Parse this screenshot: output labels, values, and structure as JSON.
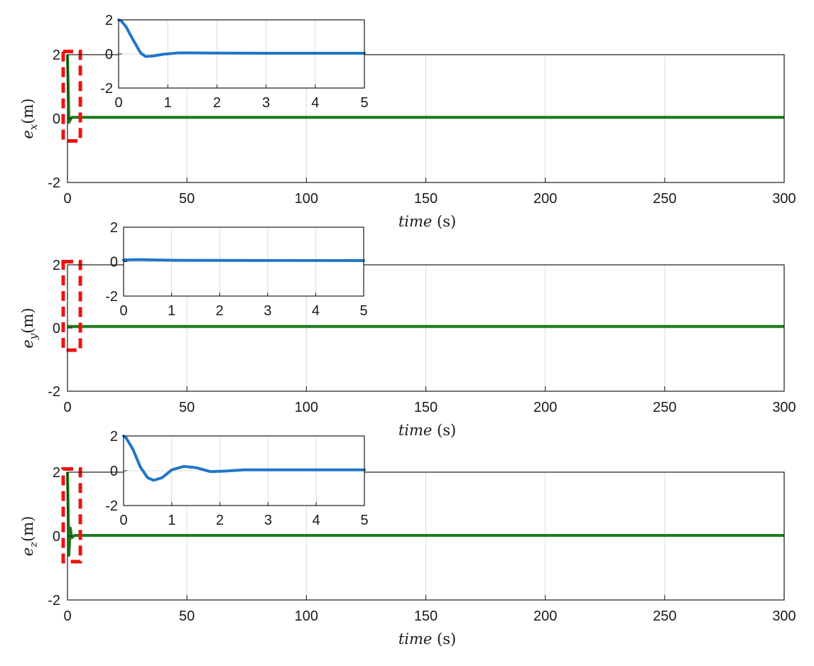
{
  "colors": {
    "main_line": "#1a7a1a",
    "inset_line": "#1f77c8",
    "highlight_box": "#ee1111",
    "grid": "#dcdcdc",
    "axes": "#1a1a1a"
  },
  "chart_data": [
    {
      "type": "line",
      "xlabel": {
        "var": "time",
        "unit": "(s)"
      },
      "ylabel": {
        "sym": "e",
        "sub": "x",
        "unit": "(m)"
      },
      "xlim": [
        0,
        300
      ],
      "ylim": [
        -2,
        2
      ],
      "xticks": [
        0,
        50,
        100,
        150,
        200,
        250,
        300
      ],
      "yticks": [
        -2,
        0,
        2
      ],
      "grid": true,
      "series": [
        {
          "x": [
            0,
            0.3,
            0.6,
            1.0,
            1.5,
            2,
            5,
            300
          ],
          "y": [
            2,
            1.0,
            -0.12,
            -0.06,
            0.02,
            0.04,
            0.04,
            0.04
          ]
        }
      ],
      "highlight_box": {
        "x": [
          0,
          3
        ],
        "y": [
          -0.7,
          2.1
        ]
      },
      "inset": {
        "xlim": [
          0,
          5
        ],
        "ylim": [
          -2,
          2
        ],
        "xticks": [
          0,
          1,
          2,
          3,
          4,
          5
        ],
        "yticks": [
          -2,
          0,
          2
        ],
        "series": [
          {
            "x": [
              0,
              0.05,
              0.15,
              0.3,
              0.45,
              0.55,
              0.7,
              0.9,
              1.2,
              1.5,
              2,
              3,
              5
            ],
            "y": [
              2,
              1.95,
              1.6,
              0.8,
              0.05,
              -0.15,
              -0.12,
              -0.02,
              0.06,
              0.06,
              0.05,
              0.04,
              0.04
            ]
          }
        ]
      }
    },
    {
      "type": "line",
      "xlabel": {
        "var": "time",
        "unit": "(s)"
      },
      "ylabel": {
        "sym": "e",
        "sub": "y",
        "unit": "(m)"
      },
      "xlim": [
        0,
        300
      ],
      "ylim": [
        -2,
        2
      ],
      "xticks": [
        0,
        50,
        100,
        150,
        200,
        250,
        300
      ],
      "yticks": [
        -2,
        0,
        2
      ],
      "grid": true,
      "series": [
        {
          "x": [
            0,
            300
          ],
          "y": [
            0.05,
            0.05
          ]
        }
      ],
      "highlight_box": {
        "x": [
          0,
          3
        ],
        "y": [
          -0.7,
          2.1
        ]
      },
      "inset": {
        "xlim": [
          0,
          5
        ],
        "ylim": [
          -2,
          2
        ],
        "xticks": [
          0,
          1,
          2,
          3,
          4,
          5
        ],
        "yticks": [
          -2,
          0,
          2
        ],
        "series": [
          {
            "x": [
              0,
              0.3,
              1,
              5
            ],
            "y": [
              0.1,
              0.12,
              0.08,
              0.06
            ]
          }
        ]
      }
    },
    {
      "type": "line",
      "xlabel": {
        "var": "time",
        "unit": "(s)"
      },
      "ylabel": {
        "sym": "e",
        "sub": "z",
        "unit": "(m)"
      },
      "xlim": [
        0,
        300
      ],
      "ylim": [
        -2,
        2
      ],
      "xticks": [
        0,
        50,
        100,
        150,
        200,
        250,
        300
      ],
      "yticks": [
        -2,
        0,
        2
      ],
      "grid": true,
      "series": [
        {
          "x": [
            0,
            0.3,
            0.6,
            1.2,
            1.8,
            3,
            300
          ],
          "y": [
            2,
            0.8,
            -0.6,
            0.25,
            -0.05,
            0.02,
            0.02
          ]
        }
      ],
      "highlight_box": {
        "x": [
          0,
          3
        ],
        "y": [
          -0.8,
          2.1
        ]
      },
      "inset": {
        "xlim": [
          0,
          5
        ],
        "ylim": [
          -2,
          2
        ],
        "xticks": [
          0,
          1,
          2,
          3,
          4,
          5
        ],
        "yticks": [
          -2,
          0,
          2
        ],
        "series": [
          {
            "x": [
              0,
              0.05,
              0.2,
              0.35,
              0.5,
              0.62,
              0.8,
              1.0,
              1.25,
              1.5,
              1.8,
              2.1,
              2.5,
              3,
              5
            ],
            "y": [
              2,
              1.9,
              1.2,
              0.2,
              -0.4,
              -0.55,
              -0.4,
              0.05,
              0.25,
              0.18,
              -0.05,
              -0.02,
              0.05,
              0.05,
              0.05
            ]
          }
        ]
      }
    }
  ]
}
